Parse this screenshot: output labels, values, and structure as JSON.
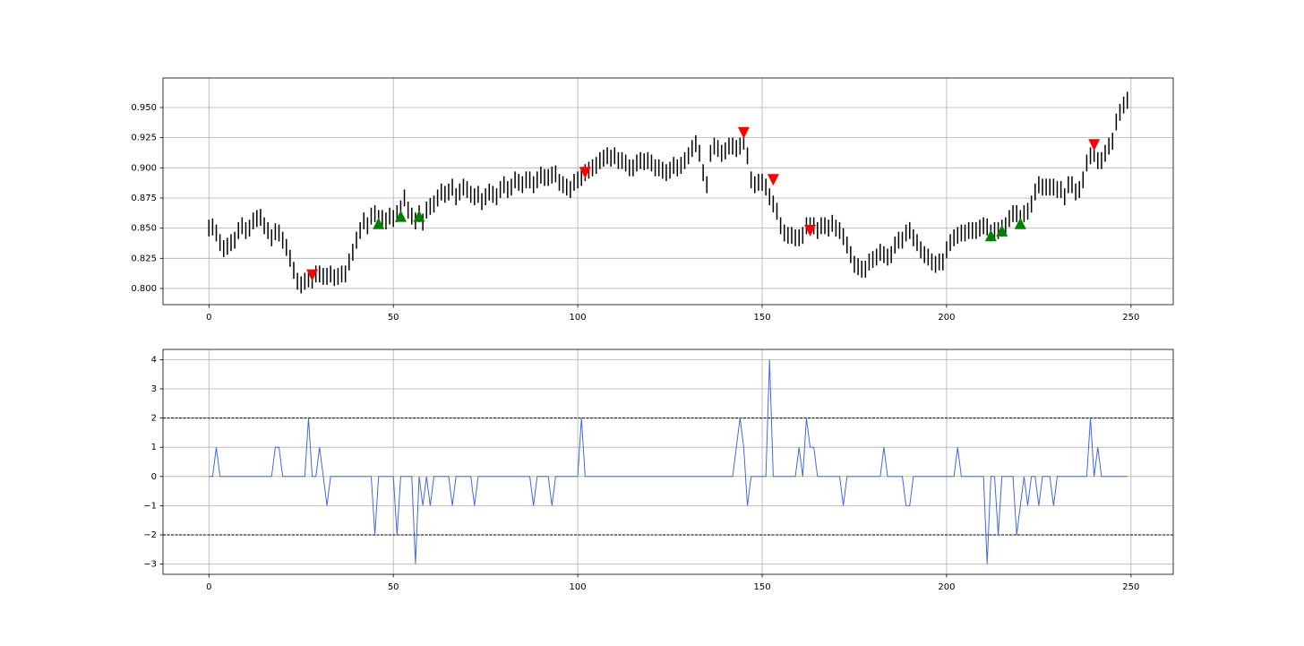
{
  "chart_data": [
    {
      "type": "hilo",
      "color": "#000000",
      "grid": true,
      "xlim": [
        -12.45,
        261.45
      ],
      "xticks": [
        0,
        50,
        100,
        150,
        200,
        250
      ],
      "ylim": [
        0.7866,
        0.9745
      ],
      "yticks": [
        {
          "value": 0.8,
          "label": "0.800"
        },
        {
          "value": 0.825,
          "label": "0.825"
        },
        {
          "value": 0.85,
          "label": "0.850"
        },
        {
          "value": 0.875,
          "label": "0.875"
        },
        {
          "value": 0.9,
          "label": "0.900"
        },
        {
          "value": 0.925,
          "label": "0.925"
        },
        {
          "value": 0.95,
          "label": "0.950"
        }
      ],
      "x": [
        0,
        1,
        2,
        3,
        4,
        5,
        6,
        7,
        8,
        9,
        10,
        11,
        12,
        13,
        14,
        15,
        16,
        17,
        18,
        19,
        20,
        21,
        22,
        23,
        24,
        25,
        26,
        27,
        28,
        29,
        30,
        31,
        32,
        33,
        34,
        35,
        36,
        37,
        38,
        39,
        40,
        41,
        42,
        43,
        44,
        45,
        46,
        47,
        48,
        49,
        50,
        51,
        52,
        53,
        54,
        55,
        56,
        57,
        58,
        59,
        60,
        61,
        62,
        63,
        64,
        65,
        66,
        67,
        68,
        69,
        70,
        71,
        72,
        73,
        74,
        75,
        76,
        77,
        78,
        79,
        80,
        81,
        82,
        83,
        84,
        85,
        86,
        87,
        88,
        89,
        90,
        91,
        92,
        93,
        94,
        95,
        96,
        97,
        98,
        99,
        100,
        101,
        102,
        103,
        104,
        105,
        106,
        107,
        108,
        109,
        110,
        111,
        112,
        113,
        114,
        115,
        116,
        117,
        118,
        119,
        120,
        121,
        122,
        123,
        124,
        125,
        126,
        127,
        128,
        129,
        130,
        131,
        132,
        133,
        134,
        135,
        136,
        137,
        138,
        139,
        140,
        141,
        142,
        143,
        144,
        145,
        146,
        147,
        148,
        149,
        150,
        151,
        152,
        153,
        154,
        155,
        156,
        157,
        158,
        159,
        160,
        161,
        162,
        163,
        164,
        165,
        166,
        167,
        168,
        169,
        170,
        171,
        172,
        173,
        174,
        175,
        176,
        177,
        178,
        179,
        180,
        181,
        182,
        183,
        184,
        185,
        186,
        187,
        188,
        189,
        190,
        191,
        192,
        193,
        194,
        195,
        196,
        197,
        198,
        199,
        200,
        201,
        202,
        203,
        204,
        205,
        206,
        207,
        208,
        209,
        210,
        211,
        212,
        213,
        214,
        215,
        216,
        217,
        218,
        219,
        220,
        221,
        222,
        223,
        224,
        225,
        226,
        227,
        228,
        229,
        230,
        231,
        232,
        233,
        234,
        235,
        236,
        237,
        238,
        239,
        240,
        241,
        242,
        243,
        244,
        245,
        246,
        247,
        248,
        249
      ],
      "low": [
        0.843,
        0.844,
        0.839,
        0.831,
        0.826,
        0.828,
        0.831,
        0.833,
        0.841,
        0.845,
        0.841,
        0.843,
        0.849,
        0.851,
        0.852,
        0.845,
        0.841,
        0.835,
        0.84,
        0.839,
        0.833,
        0.827,
        0.818,
        0.808,
        0.799,
        0.796,
        0.799,
        0.801,
        0.8,
        0.805,
        0.805,
        0.803,
        0.803,
        0.805,
        0.802,
        0.803,
        0.805,
        0.805,
        0.815,
        0.823,
        0.833,
        0.841,
        0.849,
        0.845,
        0.853,
        0.855,
        0.851,
        0.851,
        0.849,
        0.853,
        0.851,
        0.855,
        0.859,
        0.868,
        0.858,
        0.853,
        0.849,
        0.855,
        0.848,
        0.858,
        0.861,
        0.863,
        0.868,
        0.873,
        0.871,
        0.873,
        0.877,
        0.869,
        0.873,
        0.877,
        0.875,
        0.871,
        0.869,
        0.871,
        0.865,
        0.869,
        0.873,
        0.871,
        0.869,
        0.875,
        0.879,
        0.875,
        0.877,
        0.883,
        0.881,
        0.879,
        0.883,
        0.883,
        0.879,
        0.883,
        0.887,
        0.885,
        0.885,
        0.887,
        0.888,
        0.881,
        0.879,
        0.877,
        0.875,
        0.881,
        0.883,
        0.885,
        0.889,
        0.891,
        0.893,
        0.895,
        0.899,
        0.901,
        0.903,
        0.901,
        0.903,
        0.899,
        0.899,
        0.897,
        0.893,
        0.893,
        0.897,
        0.899,
        0.898,
        0.899,
        0.897,
        0.893,
        0.893,
        0.891,
        0.889,
        0.891,
        0.895,
        0.893,
        0.895,
        0.899,
        0.903,
        0.909,
        0.913,
        0.905,
        0.889,
        0.879,
        0.905,
        0.911,
        0.909,
        0.905,
        0.907,
        0.911,
        0.911,
        0.909,
        0.911,
        0.915,
        0.903,
        0.883,
        0.879,
        0.881,
        0.881,
        0.877,
        0.869,
        0.863,
        0.857,
        0.845,
        0.839,
        0.837,
        0.837,
        0.835,
        0.835,
        0.837,
        0.845,
        0.845,
        0.845,
        0.841,
        0.845,
        0.845,
        0.843,
        0.847,
        0.843,
        0.841,
        0.836,
        0.829,
        0.821,
        0.813,
        0.811,
        0.809,
        0.809,
        0.815,
        0.817,
        0.819,
        0.823,
        0.821,
        0.819,
        0.821,
        0.829,
        0.833,
        0.833,
        0.839,
        0.841,
        0.835,
        0.831,
        0.825,
        0.821,
        0.819,
        0.815,
        0.813,
        0.815,
        0.815,
        0.825,
        0.831,
        0.835,
        0.837,
        0.839,
        0.839,
        0.841,
        0.841,
        0.841,
        0.843,
        0.845,
        0.844,
        0.839,
        0.841,
        0.841,
        0.843,
        0.845,
        0.851,
        0.855,
        0.855,
        0.851,
        0.855,
        0.857,
        0.863,
        0.873,
        0.879,
        0.877,
        0.877,
        0.877,
        0.877,
        0.875,
        0.875,
        0.869,
        0.879,
        0.879,
        0.873,
        0.875,
        0.883,
        0.897,
        0.903,
        0.905,
        0.899,
        0.899,
        0.905,
        0.911,
        0.915,
        0.931,
        0.939,
        0.945,
        0.949
      ],
      "high": [
        0.857,
        0.858,
        0.853,
        0.845,
        0.84,
        0.842,
        0.845,
        0.847,
        0.855,
        0.859,
        0.855,
        0.857,
        0.863,
        0.865,
        0.866,
        0.859,
        0.855,
        0.849,
        0.854,
        0.853,
        0.847,
        0.841,
        0.832,
        0.822,
        0.813,
        0.81,
        0.813,
        0.815,
        0.814,
        0.819,
        0.819,
        0.817,
        0.817,
        0.819,
        0.816,
        0.817,
        0.819,
        0.819,
        0.829,
        0.837,
        0.847,
        0.855,
        0.863,
        0.859,
        0.867,
        0.869,
        0.865,
        0.865,
        0.863,
        0.867,
        0.865,
        0.869,
        0.873,
        0.882,
        0.872,
        0.867,
        0.863,
        0.869,
        0.862,
        0.872,
        0.875,
        0.877,
        0.882,
        0.887,
        0.885,
        0.887,
        0.891,
        0.883,
        0.887,
        0.891,
        0.889,
        0.885,
        0.883,
        0.885,
        0.879,
        0.883,
        0.887,
        0.885,
        0.883,
        0.889,
        0.893,
        0.889,
        0.891,
        0.897,
        0.895,
        0.893,
        0.897,
        0.897,
        0.893,
        0.897,
        0.901,
        0.899,
        0.899,
        0.901,
        0.902,
        0.895,
        0.893,
        0.891,
        0.889,
        0.895,
        0.897,
        0.899,
        0.903,
        0.905,
        0.907,
        0.909,
        0.913,
        0.915,
        0.917,
        0.915,
        0.917,
        0.913,
        0.913,
        0.911,
        0.907,
        0.907,
        0.911,
        0.913,
        0.912,
        0.913,
        0.911,
        0.907,
        0.907,
        0.905,
        0.903,
        0.905,
        0.909,
        0.907,
        0.909,
        0.913,
        0.917,
        0.923,
        0.927,
        0.919,
        0.903,
        0.893,
        0.919,
        0.925,
        0.923,
        0.919,
        0.921,
        0.925,
        0.925,
        0.923,
        0.925,
        0.929,
        0.917,
        0.897,
        0.893,
        0.895,
        0.895,
        0.891,
        0.883,
        0.877,
        0.871,
        0.859,
        0.853,
        0.851,
        0.851,
        0.849,
        0.849,
        0.851,
        0.859,
        0.859,
        0.859,
        0.855,
        0.859,
        0.859,
        0.857,
        0.861,
        0.857,
        0.855,
        0.85,
        0.843,
        0.835,
        0.827,
        0.825,
        0.823,
        0.823,
        0.829,
        0.831,
        0.833,
        0.837,
        0.835,
        0.833,
        0.835,
        0.843,
        0.847,
        0.847,
        0.853,
        0.855,
        0.849,
        0.845,
        0.839,
        0.835,
        0.833,
        0.829,
        0.827,
        0.829,
        0.829,
        0.839,
        0.845,
        0.849,
        0.851,
        0.853,
        0.853,
        0.855,
        0.855,
        0.855,
        0.857,
        0.859,
        0.858,
        0.853,
        0.855,
        0.855,
        0.857,
        0.859,
        0.865,
        0.869,
        0.869,
        0.865,
        0.869,
        0.871,
        0.877,
        0.887,
        0.893,
        0.891,
        0.891,
        0.891,
        0.891,
        0.889,
        0.889,
        0.883,
        0.893,
        0.893,
        0.887,
        0.889,
        0.897,
        0.911,
        0.917,
        0.919,
        0.913,
        0.913,
        0.919,
        0.925,
        0.929,
        0.945,
        0.953,
        0.959,
        0.963
      ],
      "series": [
        {
          "color": "#ff0000",
          "marker": "down",
          "x": [
            28,
            102,
            145,
            153,
            163,
            240
          ],
          "values": [
            0.811,
            0.896,
            0.929,
            0.89,
            0.848,
            0.919
          ]
        },
        {
          "color": "#008000",
          "marker": "up",
          "x": [
            46,
            52,
            57,
            212,
            215,
            220
          ],
          "values": [
            0.854,
            0.86,
            0.86,
            0.844,
            0.848,
            0.854
          ]
        }
      ]
    },
    {
      "type": "line",
      "color": "#4169e1",
      "grid": true,
      "xlim": [
        -12.45,
        261.45
      ],
      "xticks": [
        0,
        50,
        100,
        150,
        200,
        250
      ],
      "ylim": [
        -3.35,
        4.35
      ],
      "yticks": [
        {
          "value": -3,
          "label": "−3"
        },
        {
          "value": -2,
          "label": "−2"
        },
        {
          "value": -1,
          "label": "−1"
        },
        0,
        1,
        2,
        3,
        4
      ],
      "hlines": [
        2,
        -2
      ],
      "hline_color": "#000000",
      "x": [
        0,
        1,
        2,
        3,
        4,
        5,
        6,
        7,
        8,
        9,
        10,
        11,
        12,
        13,
        14,
        15,
        16,
        17,
        18,
        19,
        20,
        21,
        22,
        23,
        24,
        25,
        26,
        27,
        28,
        29,
        30,
        31,
        32,
        33,
        34,
        35,
        36,
        37,
        38,
        39,
        40,
        41,
        42,
        43,
        44,
        45,
        46,
        47,
        48,
        49,
        50,
        51,
        52,
        53,
        54,
        55,
        56,
        57,
        58,
        59,
        60,
        61,
        62,
        63,
        64,
        65,
        66,
        67,
        68,
        69,
        70,
        71,
        72,
        73,
        74,
        75,
        76,
        77,
        78,
        79,
        80,
        81,
        82,
        83,
        84,
        85,
        86,
        87,
        88,
        89,
        90,
        91,
        92,
        93,
        94,
        95,
        96,
        97,
        98,
        99,
        100,
        101,
        102,
        103,
        104,
        105,
        106,
        107,
        108,
        109,
        110,
        111,
        112,
        113,
        114,
        115,
        116,
        117,
        118,
        119,
        120,
        121,
        122,
        123,
        124,
        125,
        126,
        127,
        128,
        129,
        130,
        131,
        132,
        133,
        134,
        135,
        136,
        137,
        138,
        139,
        140,
        141,
        142,
        143,
        144,
        145,
        146,
        147,
        148,
        149,
        150,
        151,
        152,
        153,
        154,
        155,
        156,
        157,
        158,
        159,
        160,
        161,
        162,
        163,
        164,
        165,
        166,
        167,
        168,
        169,
        170,
        171,
        172,
        173,
        174,
        175,
        176,
        177,
        178,
        179,
        180,
        181,
        182,
        183,
        184,
        185,
        186,
        187,
        188,
        189,
        190,
        191,
        192,
        193,
        194,
        195,
        196,
        197,
        198,
        199,
        200,
        201,
        202,
        203,
        204,
        205,
        206,
        207,
        208,
        209,
        210,
        211,
        212,
        213,
        214,
        215,
        216,
        217,
        218,
        219,
        220,
        221,
        222,
        223,
        224,
        225,
        226,
        227,
        228,
        229,
        230,
        231,
        232,
        233,
        234,
        235,
        236,
        237,
        238,
        239,
        240,
        241,
        242,
        243,
        244,
        245,
        246,
        247,
        248,
        249
      ],
      "values": [
        0,
        0,
        1,
        0,
        0,
        0,
        0,
        0,
        0,
        0,
        0,
        0,
        0,
        0,
        0,
        0,
        0,
        0,
        1,
        1,
        0,
        0,
        0,
        0,
        0,
        0,
        0,
        2,
        0,
        0,
        1,
        0,
        -1,
        0,
        0,
        0,
        0,
        0,
        0,
        0,
        0,
        0,
        0,
        0,
        0,
        -2,
        0,
        0,
        0,
        0,
        0,
        -2,
        0,
        0,
        0,
        0,
        -3,
        0,
        -1,
        0,
        -1,
        0,
        0,
        0,
        0,
        0,
        -1,
        0,
        0,
        0,
        0,
        0,
        -1,
        0,
        0,
        0,
        0,
        0,
        0,
        0,
        0,
        0,
        0,
        0,
        0,
        0,
        0,
        0,
        -1,
        0,
        0,
        0,
        0,
        -1,
        0,
        0,
        0,
        0,
        0,
        0,
        0,
        2,
        0,
        0,
        0,
        0,
        0,
        0,
        0,
        0,
        0,
        0,
        0,
        0,
        0,
        0,
        0,
        0,
        0,
        0,
        0,
        0,
        0,
        0,
        0,
        0,
        0,
        0,
        0,
        0,
        0,
        0,
        0,
        0,
        0,
        0,
        0,
        0,
        0,
        0,
        0,
        0,
        0,
        1,
        2,
        1,
        -1,
        0,
        0,
        0,
        0,
        0,
        4,
        0,
        0,
        0,
        0,
        0,
        0,
        0,
        1,
        0,
        2,
        1,
        1,
        0,
        0,
        0,
        0,
        0,
        0,
        0,
        -1,
        0,
        0,
        0,
        0,
        0,
        0,
        0,
        0,
        0,
        0,
        1,
        0,
        0,
        0,
        0,
        0,
        -1,
        -1,
        0,
        0,
        0,
        0,
        0,
        0,
        0,
        0,
        0,
        0,
        0,
        0,
        1,
        0,
        0,
        0,
        0,
        0,
        0,
        0,
        -3,
        0,
        0,
        -2,
        0,
        0,
        0,
        0,
        -2,
        -1,
        0,
        -1,
        0,
        0,
        -1,
        0,
        0,
        0,
        -1,
        0,
        0,
        0,
        0,
        0,
        0,
        0,
        0,
        0,
        2,
        0,
        1,
        0,
        0,
        0,
        0,
        0,
        0,
        0,
        0
      ]
    }
  ]
}
